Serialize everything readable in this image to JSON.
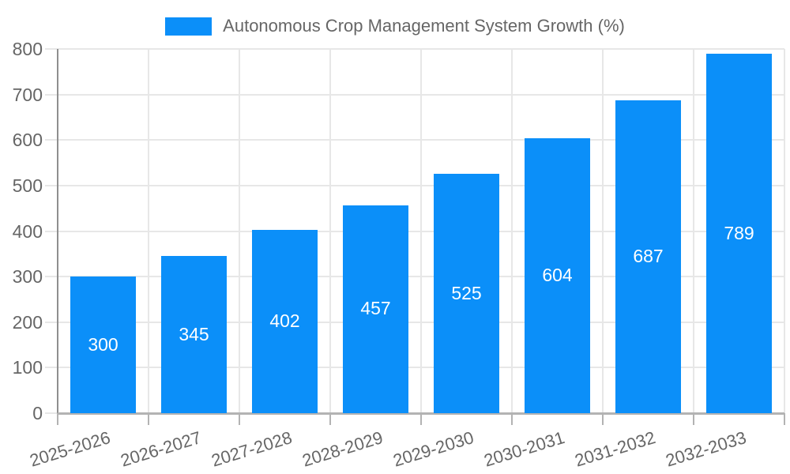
{
  "chart_data": {
    "type": "bar",
    "title": "Autonomous Crop Management System Growth (%)",
    "series_label": "Autonomous Crop Management System Growth (%)",
    "categories": [
      "2025-2026",
      "2026-2027",
      "2027-2028",
      "2028-2029",
      "2029-2030",
      "2030-2031",
      "2031-2032",
      "2032-2033"
    ],
    "values": [
      300,
      345,
      402,
      457,
      525,
      604,
      687,
      789
    ],
    "xlabel": "",
    "ylabel": "",
    "ylim": [
      0,
      800
    ],
    "ytick_step": 100,
    "ytick_labels": [
      "0",
      "100",
      "200",
      "300",
      "400",
      "500",
      "600",
      "700",
      "800"
    ],
    "grid": true,
    "legend_position": "top",
    "data_labels": "centered-white-inside-bars"
  },
  "colors": {
    "bar": "#0b8ff9",
    "grid": "#e7e7e7",
    "axis_y": "#8f8f8f",
    "axis_x": "#b3b3b3",
    "tick_x": "#b3b3b3",
    "text": "#666666",
    "value_label": "#ffffff",
    "background": "#ffffff"
  }
}
